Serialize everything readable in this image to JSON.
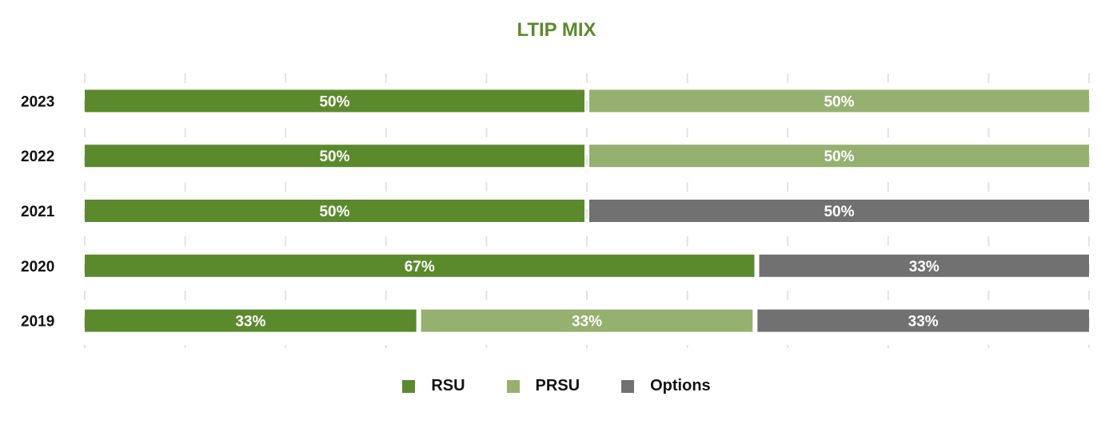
{
  "chart_data": {
    "type": "bar",
    "orientation": "horizontal",
    "stacked": true,
    "title": "LTIP MIX",
    "categories": [
      "2023",
      "2022",
      "2021",
      "2020",
      "2019"
    ],
    "series": [
      {
        "name": "RSU",
        "color": "#5b8a2d",
        "values": [
          50,
          50,
          50,
          67,
          33
        ],
        "labels": [
          "50%",
          "50%",
          "50%",
          "67%",
          "33%"
        ]
      },
      {
        "name": "PRSU",
        "color": "#96b070",
        "values": [
          50,
          50,
          0,
          0,
          33
        ],
        "labels": [
          "50%",
          "50%",
          "",
          "",
          "33%"
        ]
      },
      {
        "name": "Options",
        "color": "#717172",
        "values": [
          0,
          0,
          50,
          33,
          33
        ],
        "labels": [
          "",
          "",
          "50%",
          "33%",
          "33%"
        ]
      }
    ],
    "xlim": [
      0,
      100
    ],
    "xlabel": "",
    "ylabel": "",
    "grid": true,
    "legend": "bottom-center"
  }
}
